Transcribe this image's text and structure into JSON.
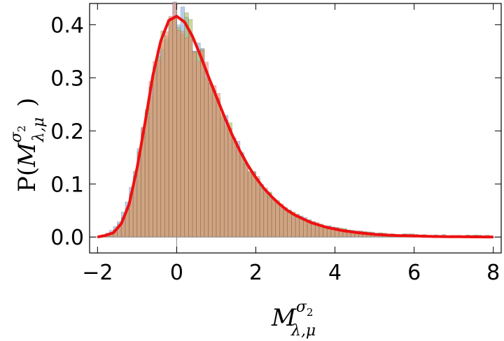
{
  "chart_data": {
    "type": "bar",
    "title": "",
    "xlabel": {
      "main": "M",
      "superscript": "σ",
      "sup_sub": "2",
      "subscript": "λ,μ"
    },
    "ylabel": {
      "prefix": "P(",
      "main": "M",
      "superscript": "σ",
      "sup_sub": "2",
      "subscript": "λ,μ",
      "suffix": ")"
    },
    "xlim": [
      -2.2,
      8.2
    ],
    "ylim": [
      -0.03,
      0.44
    ],
    "x_ticks": [
      -2,
      0,
      2,
      4,
      6,
      8
    ],
    "x_tick_labels": [
      "−2",
      "0",
      "2",
      "4",
      "6",
      "8"
    ],
    "y_ticks": [
      0.0,
      0.1,
      0.2,
      0.3,
      0.4
    ],
    "y_tick_labels": [
      "0.0",
      "0.1",
      "0.2",
      "0.3",
      "0.4"
    ],
    "bin_width": 0.1,
    "grid": false,
    "histogram_series": [
      {
        "color": "#7ea6d8",
        "opacity": 0.55,
        "offset": 0.012,
        "seed": 1
      },
      {
        "color": "#9dbb4a",
        "opacity": 0.55,
        "offset": -0.006,
        "seed": 7
      },
      {
        "color": "#f08a72",
        "opacity": 0.55,
        "offset": 0.004,
        "seed": 13
      }
    ],
    "fit_curve": {
      "color": "#ee1111",
      "x": [
        -2.0,
        -1.8,
        -1.6,
        -1.4,
        -1.2,
        -1.0,
        -0.8,
        -0.6,
        -0.4,
        -0.2,
        0.0,
        0.2,
        0.4,
        0.6,
        0.8,
        1.0,
        1.2,
        1.4,
        1.6,
        1.8,
        2.0,
        2.2,
        2.4,
        2.6,
        2.8,
        3.0,
        3.4,
        3.8,
        4.2,
        4.6,
        5.0,
        5.5,
        6.0,
        6.5,
        7.0,
        7.5,
        8.0
      ],
      "y": [
        0.0,
        0.003,
        0.008,
        0.025,
        0.062,
        0.13,
        0.215,
        0.305,
        0.37,
        0.408,
        0.416,
        0.405,
        0.378,
        0.342,
        0.303,
        0.265,
        0.228,
        0.193,
        0.162,
        0.135,
        0.112,
        0.092,
        0.076,
        0.062,
        0.05,
        0.041,
        0.027,
        0.018,
        0.012,
        0.008,
        0.005,
        0.003,
        0.002,
        0.001,
        0.0006,
        0.0003,
        0.0001
      ]
    }
  }
}
